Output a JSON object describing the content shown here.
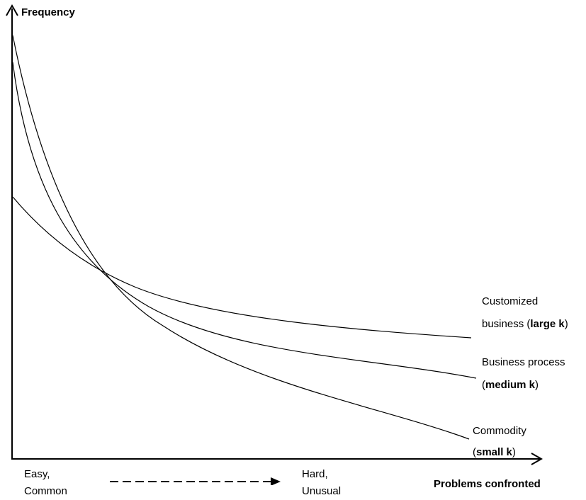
{
  "chart_data": {
    "type": "line",
    "ylabel": "Frequency",
    "xlabel": "Problems confronted",
    "axis_note": {
      "start_line1": "Easy,",
      "start_line2": "Common",
      "end_line1": "Hard,",
      "end_line2": "Unusual"
    },
    "series": [
      {
        "label_line1": "Customized",
        "label_line2_prefix": "business (",
        "label_line2_bold": "large k",
        "label_line2_suffix": ")"
      },
      {
        "label_line1": "Business process",
        "label_line2_prefix": "(",
        "label_line2_bold": "medium k",
        "label_line2_suffix": ")"
      },
      {
        "label_line1": "Commodity",
        "label_line2_prefix": "(",
        "label_line2_bold": "small k",
        "label_line2_suffix": ")"
      }
    ],
    "grid": false,
    "ticks": false
  }
}
